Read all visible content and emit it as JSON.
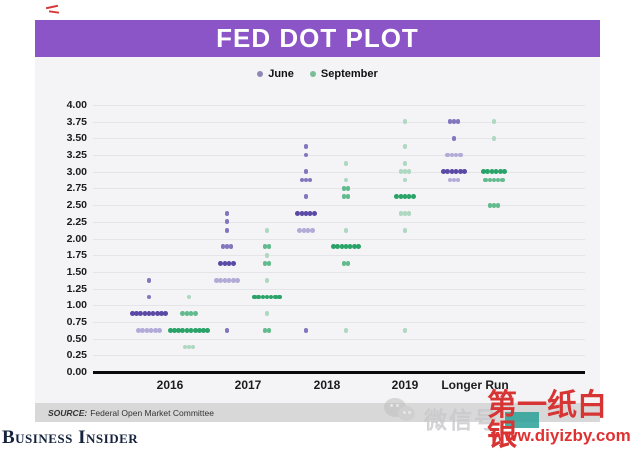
{
  "header": {
    "title": "FED DOT PLOT"
  },
  "legend": {
    "items": [
      {
        "label": "June",
        "color": "#8f88b6"
      },
      {
        "label": "September",
        "color": "#79bd99"
      }
    ]
  },
  "y_axis": {
    "ticks": [
      "4.00",
      "3.75",
      "3.50",
      "3.25",
      "3.00",
      "2.75",
      "2.50",
      "2.25",
      "2.00",
      "1.75",
      "1.50",
      "1.25",
      "1.00",
      "0.75",
      "0.50",
      "0.25",
      "0.00"
    ]
  },
  "chart_data": {
    "type": "scatter",
    "title": "FED DOT PLOT",
    "categories": [
      "2016",
      "2017",
      "2018",
      "2019",
      "Longer Run"
    ],
    "ylim": [
      0,
      4
    ],
    "y_step": 0.25,
    "grid": true,
    "legend_position": "top",
    "series": [
      {
        "name": "June",
        "shades": {
          "dark": "#5a49a5",
          "mid": "#8177bf",
          "light": "#b2abd8"
        },
        "groups": [
          {
            "year": "2016",
            "value": 1.375,
            "count": 1,
            "shade": "mid"
          },
          {
            "year": "2016",
            "value": 1.125,
            "count": 1,
            "shade": "mid"
          },
          {
            "year": "2016",
            "value": 0.875,
            "count": 9,
            "shade": "dark"
          },
          {
            "year": "2016",
            "value": 0.625,
            "count": 6,
            "shade": "light"
          },
          {
            "year": "2017",
            "value": 2.375,
            "count": 1,
            "shade": "mid"
          },
          {
            "year": "2017",
            "value": 2.25,
            "count": 1,
            "shade": "mid"
          },
          {
            "year": "2017",
            "value": 2.125,
            "count": 1,
            "shade": "mid"
          },
          {
            "year": "2017",
            "value": 1.875,
            "count": 3,
            "shade": "mid"
          },
          {
            "year": "2017",
            "value": 1.625,
            "count": 4,
            "shade": "dark"
          },
          {
            "year": "2017",
            "value": 1.375,
            "count": 6,
            "shade": "light"
          },
          {
            "year": "2017",
            "value": 0.625,
            "count": 1,
            "shade": "mid"
          },
          {
            "year": "2018",
            "value": 3.375,
            "count": 1,
            "shade": "mid"
          },
          {
            "year": "2018",
            "value": 3.25,
            "count": 1,
            "shade": "mid"
          },
          {
            "year": "2018",
            "value": 3.0,
            "count": 1,
            "shade": "mid"
          },
          {
            "year": "2018",
            "value": 2.875,
            "count": 3,
            "shade": "mid"
          },
          {
            "year": "2018",
            "value": 2.625,
            "count": 1,
            "shade": "mid"
          },
          {
            "year": "2018",
            "value": 2.375,
            "count": 5,
            "shade": "dark"
          },
          {
            "year": "2018",
            "value": 2.125,
            "count": 4,
            "shade": "light"
          },
          {
            "year": "2018",
            "value": 0.625,
            "count": 1,
            "shade": "mid"
          },
          {
            "year": "Longer Run",
            "value": 3.75,
            "count": 3,
            "shade": "mid"
          },
          {
            "year": "Longer Run",
            "value": 3.5,
            "count": 1,
            "shade": "mid"
          },
          {
            "year": "Longer Run",
            "value": 3.25,
            "count": 4,
            "shade": "light"
          },
          {
            "year": "Longer Run",
            "value": 3.0,
            "count": 6,
            "shade": "dark"
          },
          {
            "year": "Longer Run",
            "value": 2.875,
            "count": 3,
            "shade": "light"
          }
        ]
      },
      {
        "name": "September",
        "shades": {
          "dark": "#2aa368",
          "mid": "#62bb8e",
          "light": "#aed8c1"
        },
        "groups": [
          {
            "year": "2016",
            "value": 1.125,
            "count": 1,
            "shade": "light"
          },
          {
            "year": "2016",
            "value": 0.875,
            "count": 4,
            "shade": "mid"
          },
          {
            "year": "2016",
            "value": 0.625,
            "count": 10,
            "shade": "dark"
          },
          {
            "year": "2016",
            "value": 0.375,
            "count": 3,
            "shade": "light"
          },
          {
            "year": "2017",
            "value": 2.125,
            "count": 1,
            "shade": "light"
          },
          {
            "year": "2017",
            "value": 1.875,
            "count": 2,
            "shade": "mid"
          },
          {
            "year": "2017",
            "value": 1.75,
            "count": 1,
            "shade": "light"
          },
          {
            "year": "2017",
            "value": 1.625,
            "count": 2,
            "shade": "mid"
          },
          {
            "year": "2017",
            "value": 1.375,
            "count": 1,
            "shade": "light"
          },
          {
            "year": "2017",
            "value": 1.125,
            "count": 7,
            "shade": "dark"
          },
          {
            "year": "2017",
            "value": 0.875,
            "count": 1,
            "shade": "light"
          },
          {
            "year": "2017",
            "value": 0.625,
            "count": 2,
            "shade": "mid"
          },
          {
            "year": "2018",
            "value": 3.125,
            "count": 1,
            "shade": "light"
          },
          {
            "year": "2018",
            "value": 2.875,
            "count": 1,
            "shade": "light"
          },
          {
            "year": "2018",
            "value": 2.75,
            "count": 2,
            "shade": "mid"
          },
          {
            "year": "2018",
            "value": 2.625,
            "count": 2,
            "shade": "mid"
          },
          {
            "year": "2018",
            "value": 2.125,
            "count": 1,
            "shade": "light"
          },
          {
            "year": "2018",
            "value": 1.875,
            "count": 7,
            "shade": "dark"
          },
          {
            "year": "2018",
            "value": 1.625,
            "count": 2,
            "shade": "mid"
          },
          {
            "year": "2018",
            "value": 0.625,
            "count": 1,
            "shade": "light"
          },
          {
            "year": "2019",
            "value": 3.75,
            "count": 1,
            "shade": "light"
          },
          {
            "year": "2019",
            "value": 3.375,
            "count": 1,
            "shade": "light"
          },
          {
            "year": "2019",
            "value": 3.125,
            "count": 1,
            "shade": "light"
          },
          {
            "year": "2019",
            "value": 3.0,
            "count": 3,
            "shade": "light"
          },
          {
            "year": "2019",
            "value": 2.875,
            "count": 1,
            "shade": "light"
          },
          {
            "year": "2019",
            "value": 2.625,
            "count": 5,
            "shade": "dark"
          },
          {
            "year": "2019",
            "value": 2.375,
            "count": 3,
            "shade": "light"
          },
          {
            "year": "2019",
            "value": 2.125,
            "count": 1,
            "shade": "light"
          },
          {
            "year": "2019",
            "value": 0.625,
            "count": 1,
            "shade": "light"
          },
          {
            "year": "Longer Run",
            "value": 3.75,
            "count": 1,
            "shade": "light"
          },
          {
            "year": "Longer Run",
            "value": 3.5,
            "count": 1,
            "shade": "light"
          },
          {
            "year": "Longer Run",
            "value": 3.0,
            "count": 6,
            "shade": "dark"
          },
          {
            "year": "Longer Run",
            "value": 2.875,
            "count": 5,
            "shade": "mid"
          },
          {
            "year": "Longer Run",
            "value": 2.5,
            "count": 3,
            "shade": "mid"
          }
        ]
      }
    ]
  },
  "source": {
    "prefix": "SOURCE:",
    "text": "Federal Open Market Committee"
  },
  "footer": {
    "brand": "Business Insider"
  },
  "watermark": {
    "wechat_label": "微信号",
    "brand": "第一纸白银",
    "url": "www.diyizby.com",
    "red": "#d73434",
    "teal": "#2aa198"
  },
  "colors": {
    "header_bar": "#8b55c8",
    "card_bg": "#f4f3f5",
    "grid": "#e5e4e8"
  }
}
